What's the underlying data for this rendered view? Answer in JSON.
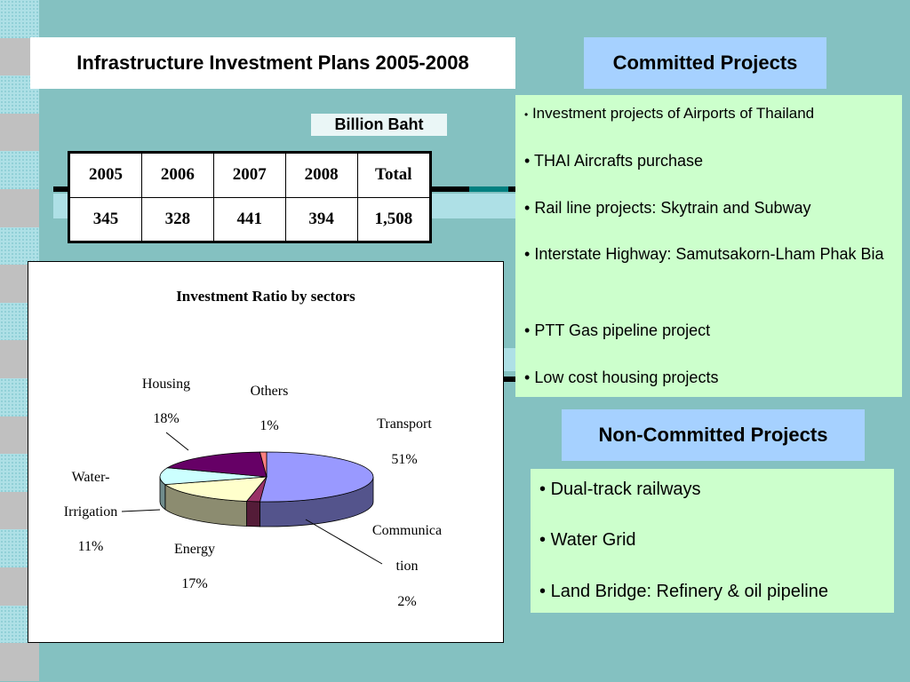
{
  "title": "Infrastructure Investment Plans 2005-2008",
  "unit": "Billion Baht",
  "table": {
    "headers": [
      "2005",
      "2006",
      "2007",
      "2008",
      "Total"
    ],
    "values": [
      "345",
      "328",
      "441",
      "394",
      "1,508"
    ]
  },
  "chart_data": {
    "type": "pie",
    "title": "Investment Ratio by sectors",
    "slices": [
      {
        "label": "Transport",
        "value": 51,
        "pct": "51%",
        "color": "#9999ff"
      },
      {
        "label": "Communica tion",
        "value": 2,
        "pct": "2%",
        "color": "#993366"
      },
      {
        "label": "Energy",
        "value": 17,
        "pct": "17%",
        "color": "#ffffcc"
      },
      {
        "label": "Water- Irrigation",
        "value": 11,
        "pct": "11%",
        "color": "#ccffff"
      },
      {
        "label": "Housing",
        "value": 18,
        "pct": "18%",
        "color": "#660066"
      },
      {
        "label": "Others",
        "value": 1,
        "pct": "1%",
        "color": "#ff8080"
      }
    ],
    "labels": {
      "transport": {
        "name": "Transport",
        "pct": "51%"
      },
      "communication": {
        "line1": "Communica",
        "line2": "tion",
        "pct": "2%"
      },
      "energy": {
        "name": "Energy",
        "pct": "17%"
      },
      "water": {
        "line1": "Water-",
        "line2": "Irrigation",
        "pct": "11%"
      },
      "housing": {
        "name": "Housing",
        "pct": "18%"
      },
      "others": {
        "name": "Others",
        "pct": "1%"
      }
    },
    "style": "3d-pie"
  },
  "committed": {
    "heading": "Committed Projects",
    "items": [
      "Investment projects of Airports of Thailand",
      "THAI Aircrafts purchase",
      "Rail line projects: Skytrain and Subway",
      "Interstate Highway: Samutsakorn-Lham Phak Bia",
      "PTT Gas pipeline project",
      "Low cost housing projects"
    ]
  },
  "noncommitted": {
    "heading": "Non-Committed Projects",
    "items": [
      "Dual-track railways",
      "Water Grid",
      "Land Bridge: Refinery & oil pipeline"
    ]
  },
  "bullet": "•"
}
